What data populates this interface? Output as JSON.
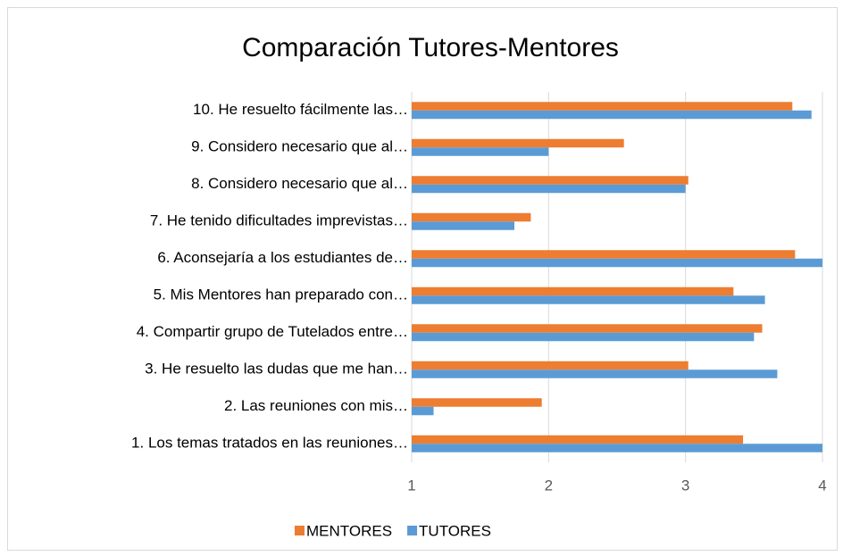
{
  "chart_data": {
    "type": "bar",
    "orientation": "horizontal",
    "title": "Comparación Tutores-Mentores",
    "categories": [
      "1. Los temas tratados en las reuniones…",
      "2. Las reuniones con mis…",
      "3. He resuelto las dudas que me han…",
      "4. Compartir grupo de Tutelados entre…",
      "5. Mis Mentores han preparado con…",
      "6. Aconsejaría a los estudiantes de…",
      "7. He tenido dificultades imprevistas…",
      "8. Considero necesario que al…",
      "9. Considero necesario que al…",
      "10. He resuelto fácilmente las…"
    ],
    "series": [
      {
        "name": "MENTORES",
        "color": "#ed7d31",
        "values": [
          3.42,
          1.95,
          3.02,
          3.56,
          3.35,
          3.8,
          1.87,
          3.02,
          2.55,
          3.78
        ]
      },
      {
        "name": "TUTORES",
        "color": "#5b9bd5",
        "values": [
          4,
          1.16,
          3.67,
          3.5,
          3.58,
          4,
          1.75,
          3,
          2.0,
          3.92
        ]
      }
    ],
    "xlim": [
      1,
      4
    ],
    "xticks": [
      1,
      2,
      3,
      4
    ],
    "grid": true,
    "legend": "bottom"
  }
}
